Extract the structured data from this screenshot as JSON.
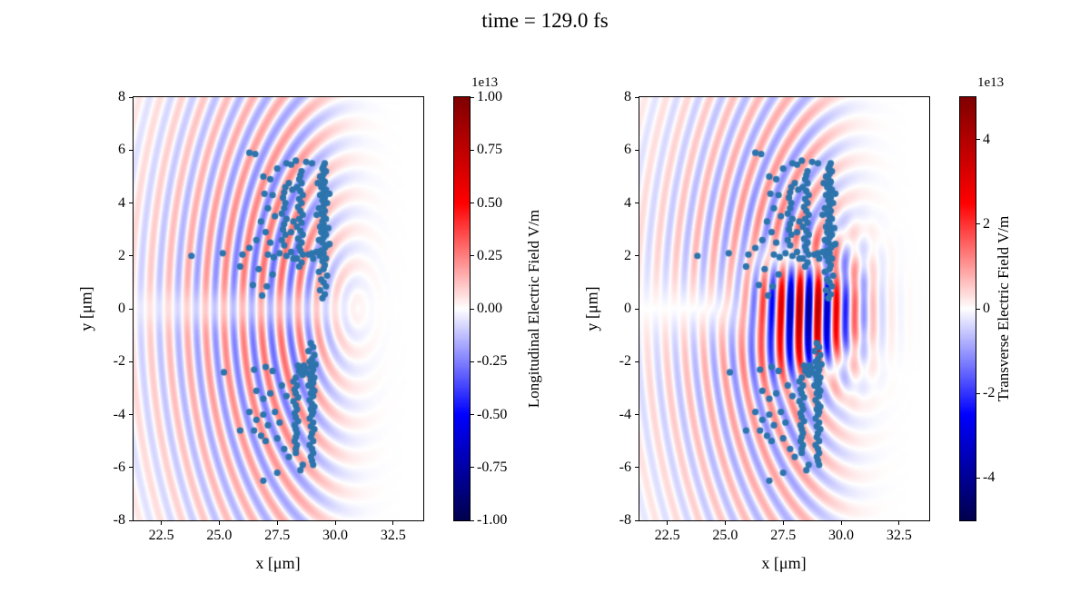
{
  "chart_data": {
    "type": "scatter",
    "title": "time = 129.0 fs",
    "colormap": "seismic",
    "marker": {
      "color": "#2d74ad",
      "radius_px": 3.6
    },
    "panels": [
      {
        "name": "longitudinal",
        "xlabel": "x [μm]",
        "ylabel": "y [μm]",
        "xlim": [
          21.3,
          33.8
        ],
        "ylim": [
          -8,
          8
        ],
        "xticks": [
          22.5,
          25.0,
          27.5,
          30.0,
          32.5
        ],
        "xtick_labels": [
          "22.5",
          "25.0",
          "27.5",
          "30.0",
          "32.5"
        ],
        "yticks": [
          -8,
          -6,
          -4,
          -2,
          0,
          2,
          4,
          6,
          8
        ],
        "ytick_labels": [
          "-8",
          "-6",
          "-4",
          "-2",
          "0",
          "2",
          "4",
          "6",
          "8"
        ],
        "colorbar": {
          "label": "Longitudinal Electric Field V/m",
          "offset": "1e13",
          "vmin": -1.0,
          "vmax": 1.0,
          "tick_values": [
            1.0,
            0.75,
            0.5,
            0.25,
            0.0,
            -0.25,
            -0.5,
            -0.75,
            -1.0
          ],
          "tick_labels": [
            "1.00",
            "0.75",
            "0.50",
            "0.25",
            "0.00",
            "-0.25",
            "-0.50",
            "-0.75",
            "-1.00"
          ]
        },
        "field": {
          "arc_amp": 0.3,
          "arc_center_x": 31.0,
          "arc_y_aspect": 0.6,
          "wavelength": 0.8,
          "env_x": 28.0,
          "env_sx_left": 4.2,
          "env_sx_right": 1.5,
          "env_sy": 5.5,
          "axis_gap": 0.5,
          "antisym": false,
          "laser_amp": 0
        }
      },
      {
        "name": "transverse",
        "xlabel": "x [μm]",
        "ylabel": "y [μm]",
        "xlim": [
          21.3,
          33.8
        ],
        "ylim": [
          -8,
          8
        ],
        "xticks": [
          22.5,
          25.0,
          27.5,
          30.0,
          32.5
        ],
        "xtick_labels": [
          "22.5",
          "25.0",
          "27.5",
          "30.0",
          "32.5"
        ],
        "yticks": [
          -8,
          -6,
          -4,
          -2,
          0,
          2,
          4,
          6,
          8
        ],
        "ytick_labels": [
          "-8",
          "-6",
          "-4",
          "-2",
          "0",
          "2",
          "4",
          "6",
          "8"
        ],
        "colorbar": {
          "label": "Transverse Electric Field V/m",
          "offset": "1e13",
          "vmin": -5.0,
          "vmax": 5.0,
          "tick_values": [
            4,
            2,
            0,
            -2,
            -4
          ],
          "tick_labels": [
            "4",
            "2",
            "0",
            "-2",
            "-4"
          ]
        },
        "field": {
          "arc_amp": 0.28,
          "arc_center_x": 31.0,
          "arc_y_aspect": 0.6,
          "wavelength": 0.8,
          "env_x": 28.0,
          "env_sx_left": 4.2,
          "env_sx_right": 1.5,
          "env_sy": 5.5,
          "axis_gap": 0,
          "antisym": true,
          "laser_amp": 0.85,
          "laser_x": 28.5,
          "laser_sx": 1.5,
          "laser_sy": 1.3,
          "laser_wavelength": 0.8
        }
      }
    ],
    "particles": {
      "unit": "μm",
      "points": [
        [
          29.45,
          0.4
        ],
        [
          29.55,
          0.55
        ],
        [
          29.35,
          0.7
        ],
        [
          29.6,
          0.85
        ],
        [
          29.5,
          1.0
        ],
        [
          29.4,
          1.1
        ],
        [
          29.65,
          1.25
        ],
        [
          29.3,
          1.4
        ],
        [
          29.5,
          1.5
        ],
        [
          29.55,
          1.65
        ],
        [
          29.45,
          1.8
        ],
        [
          29.6,
          1.9
        ],
        [
          29.35,
          2.0
        ],
        [
          29.5,
          2.1
        ],
        [
          29.4,
          2.2
        ],
        [
          29.55,
          2.3
        ],
        [
          29.65,
          2.4
        ],
        [
          29.45,
          2.5
        ],
        [
          29.3,
          2.6
        ],
        [
          29.5,
          2.7
        ],
        [
          29.6,
          2.8
        ],
        [
          29.4,
          2.9
        ],
        [
          29.55,
          3.0
        ],
        [
          29.35,
          3.1
        ],
        [
          29.5,
          3.2
        ],
        [
          29.45,
          3.3
        ],
        [
          29.6,
          3.4
        ],
        [
          29.5,
          3.5
        ],
        [
          29.4,
          3.6
        ],
        [
          29.55,
          3.7
        ],
        [
          29.3,
          3.8
        ],
        [
          29.5,
          3.9
        ],
        [
          29.65,
          4.0
        ],
        [
          29.45,
          4.1
        ],
        [
          29.55,
          4.2
        ],
        [
          29.35,
          4.3
        ],
        [
          29.5,
          4.4
        ],
        [
          29.6,
          4.5
        ],
        [
          29.4,
          4.6
        ],
        [
          29.5,
          4.7
        ],
        [
          29.55,
          4.8
        ],
        [
          29.45,
          4.9
        ],
        [
          29.35,
          5.0
        ],
        [
          29.5,
          5.1
        ],
        [
          29.6,
          5.2
        ],
        [
          29.45,
          5.3
        ],
        [
          29.5,
          5.4
        ],
        [
          29.55,
          5.5
        ],
        [
          29.2,
          2.15
        ],
        [
          29.75,
          2.45
        ],
        [
          29.7,
          3.05
        ],
        [
          29.2,
          3.55
        ],
        [
          29.75,
          4.35
        ],
        [
          29.25,
          4.75
        ],
        [
          28.45,
          1.6
        ],
        [
          28.55,
          1.75
        ],
        [
          28.35,
          1.9
        ],
        [
          28.6,
          2.05
        ],
        [
          28.5,
          2.2
        ],
        [
          28.45,
          2.35
        ],
        [
          28.55,
          2.5
        ],
        [
          28.4,
          2.65
        ],
        [
          28.6,
          2.8
        ],
        [
          28.5,
          2.95
        ],
        [
          28.35,
          3.1
        ],
        [
          28.55,
          3.25
        ],
        [
          28.45,
          3.4
        ],
        [
          28.6,
          3.55
        ],
        [
          28.5,
          3.7
        ],
        [
          28.4,
          3.85
        ],
        [
          28.55,
          4.0
        ],
        [
          28.45,
          4.15
        ],
        [
          28.6,
          4.3
        ],
        [
          28.5,
          4.45
        ],
        [
          28.35,
          4.6
        ],
        [
          28.55,
          4.75
        ],
        [
          28.45,
          4.9
        ],
        [
          28.5,
          5.05
        ],
        [
          28.55,
          5.2
        ],
        [
          27.8,
          2.4
        ],
        [
          27.7,
          2.6
        ],
        [
          27.85,
          2.8
        ],
        [
          27.75,
          3.0
        ],
        [
          27.8,
          3.2
        ],
        [
          27.9,
          3.4
        ],
        [
          27.7,
          3.6
        ],
        [
          27.8,
          3.8
        ],
        [
          27.85,
          4.0
        ],
        [
          27.75,
          4.2
        ],
        [
          27.8,
          4.4
        ],
        [
          27.85,
          4.6
        ],
        [
          27.1,
          2.05
        ],
        [
          27.35,
          1.95
        ],
        [
          27.6,
          2.1
        ],
        [
          27.9,
          2.0
        ],
        [
          28.1,
          2.15
        ],
        [
          28.2,
          1.9
        ],
        [
          28.85,
          2.05
        ],
        [
          29.0,
          2.1
        ],
        [
          29.05,
          1.9
        ],
        [
          26.3,
          5.9
        ],
        [
          26.55,
          5.85
        ],
        [
          26.9,
          5.0
        ],
        [
          27.2,
          4.9
        ],
        [
          27.5,
          5.3
        ],
        [
          27.9,
          5.5
        ],
        [
          28.1,
          5.45
        ],
        [
          28.3,
          5.6
        ],
        [
          28.75,
          5.55
        ],
        [
          29.0,
          5.5
        ],
        [
          27.3,
          4.3
        ],
        [
          27.1,
          3.8
        ],
        [
          26.8,
          3.3
        ],
        [
          27.0,
          2.9
        ],
        [
          26.6,
          2.6
        ],
        [
          27.4,
          3.5
        ],
        [
          27.2,
          2.5
        ],
        [
          26.95,
          4.35
        ],
        [
          28.2,
          3.3
        ],
        [
          28.1,
          2.9
        ],
        [
          28.0,
          4.75
        ],
        [
          28.15,
          4.5
        ],
        [
          23.8,
          2.0
        ],
        [
          25.15,
          2.1
        ],
        [
          26.0,
          2.05
        ],
        [
          26.3,
          2.3
        ],
        [
          25.9,
          1.6
        ],
        [
          26.45,
          0.9
        ],
        [
          27.05,
          0.85
        ],
        [
          26.85,
          0.5
        ],
        [
          27.3,
          1.3
        ],
        [
          26.7,
          1.5
        ],
        [
          28.95,
          -1.3
        ],
        [
          29.05,
          -1.45
        ],
        [
          28.85,
          -1.6
        ],
        [
          29.1,
          -1.75
        ],
        [
          29.0,
          -1.9
        ],
        [
          28.9,
          -2.0
        ],
        [
          29.15,
          -2.1
        ],
        [
          28.95,
          -2.2
        ],
        [
          29.05,
          -2.3
        ],
        [
          29.0,
          -2.4
        ],
        [
          28.9,
          -2.5
        ],
        [
          29.1,
          -2.6
        ],
        [
          28.95,
          -2.7
        ],
        [
          29.05,
          -2.8
        ],
        [
          28.85,
          -2.9
        ],
        [
          29.0,
          -3.0
        ],
        [
          29.1,
          -3.1
        ],
        [
          28.95,
          -3.2
        ],
        [
          29.05,
          -3.3
        ],
        [
          28.9,
          -3.45
        ],
        [
          29.0,
          -3.6
        ],
        [
          29.1,
          -3.7
        ],
        [
          28.95,
          -3.8
        ],
        [
          29.05,
          -3.9
        ],
        [
          29.0,
          -4.0
        ],
        [
          28.9,
          -4.15
        ],
        [
          29.05,
          -4.3
        ],
        [
          28.95,
          -4.45
        ],
        [
          29.1,
          -4.55
        ],
        [
          29.0,
          -4.7
        ],
        [
          28.95,
          -4.85
        ],
        [
          29.05,
          -5.0
        ],
        [
          28.9,
          -5.15
        ],
        [
          29.0,
          -5.3
        ],
        [
          29.05,
          -5.45
        ],
        [
          28.95,
          -5.6
        ],
        [
          29.0,
          -5.75
        ],
        [
          29.05,
          -5.9
        ],
        [
          28.3,
          -2.6
        ],
        [
          28.2,
          -2.75
        ],
        [
          28.35,
          -2.9
        ],
        [
          28.25,
          -3.05
        ],
        [
          28.3,
          -3.2
        ],
        [
          28.4,
          -3.35
        ],
        [
          28.2,
          -3.5
        ],
        [
          28.3,
          -3.65
        ],
        [
          28.35,
          -3.8
        ],
        [
          28.25,
          -3.95
        ],
        [
          28.3,
          -4.1
        ],
        [
          28.4,
          -4.25
        ],
        [
          28.25,
          -4.4
        ],
        [
          28.3,
          -4.55
        ],
        [
          28.35,
          -4.7
        ],
        [
          28.3,
          -4.85
        ],
        [
          28.25,
          -5.0
        ],
        [
          28.35,
          -5.15
        ],
        [
          28.3,
          -5.3
        ],
        [
          28.3,
          -5.45
        ],
        [
          28.5,
          -2.2
        ],
        [
          28.6,
          -2.3
        ],
        [
          28.45,
          -2.35
        ],
        [
          28.7,
          -2.25
        ],
        [
          28.55,
          -2.45
        ],
        [
          28.65,
          -2.15
        ],
        [
          28.4,
          -2.15
        ],
        [
          28.75,
          -2.4
        ],
        [
          28.6,
          -2.5
        ],
        [
          25.2,
          -2.4
        ],
        [
          26.5,
          -2.3
        ],
        [
          27.0,
          -2.2
        ],
        [
          27.3,
          -2.35
        ],
        [
          26.6,
          -3.1
        ],
        [
          26.9,
          -3.4
        ],
        [
          27.2,
          -3.2
        ],
        [
          26.3,
          -3.9
        ],
        [
          26.6,
          -4.2
        ],
        [
          26.9,
          -4.0
        ],
        [
          27.1,
          -4.4
        ],
        [
          26.5,
          -4.6
        ],
        [
          26.8,
          -4.8
        ],
        [
          27.4,
          -3.9
        ],
        [
          27.6,
          -4.3
        ],
        [
          27.5,
          -4.9
        ],
        [
          27.0,
          -5.0
        ],
        [
          25.9,
          -4.6
        ],
        [
          27.7,
          -2.9
        ],
        [
          27.9,
          -3.3
        ],
        [
          27.8,
          -5.3
        ],
        [
          28.0,
          -5.6
        ],
        [
          26.9,
          -6.5
        ],
        [
          27.5,
          -6.2
        ],
        [
          28.6,
          -5.9
        ],
        [
          28.5,
          -6.1
        ]
      ]
    }
  }
}
